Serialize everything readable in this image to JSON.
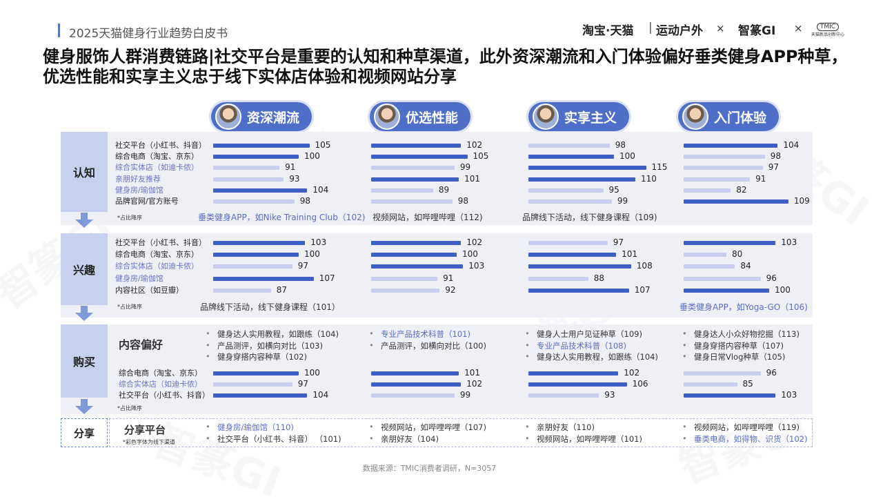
{
  "header": {
    "title": "2025天猫健身行业趋势白皮书",
    "brand_taobao": "淘宝·天猫",
    "brand_sep": "|",
    "brand_sport": "运动户外",
    "times": "×",
    "brand_gi": "智篆GI",
    "tmic_top": "TMIC",
    "tmic_bottom": "天猫新品创新中心"
  },
  "title": "健身服饰人群消费链路|社交平台是重要的认知和种草渠道，此外资深潮流和入门体验偏好垂类健身APP种草，优选性能和实享主义忠于线下实体店体验和视频网站分享",
  "watermark": "智篆GI",
  "segments": [
    "资深潮流",
    "优选性能",
    "实享主义",
    "入门体验"
  ],
  "stages": {
    "awareness": "认知",
    "interest": "兴趣",
    "purchase": "购买",
    "share": "分享"
  },
  "note_sort": "*占比降序",
  "note_color": "*彩色字体为线下渠道",
  "chart_data": [
    {
      "type": "bar",
      "stage": "认知",
      "categories": [
        "社交平台（小红书、抖音）",
        "综合电商（淘宝、京东）",
        "综合实体店（如迪卡侬）",
        "亲朋好友推荐",
        "健身房/瑜伽馆",
        "品牌官网/官方账号"
      ],
      "offline_categories": [
        2,
        3,
        4
      ],
      "series": [
        {
          "name": "资深潮流",
          "values": [
            105,
            100,
            91,
            93,
            104,
            98
          ],
          "extra": "垂类健身APP，如Nike Training Club（102)",
          "extra_offline": true
        },
        {
          "name": "优选性能",
          "values": [
            102,
            105,
            99,
            101,
            89,
            98
          ],
          "extra": "视频网站，如哔哩哔哩（112)",
          "extra_offline": false
        },
        {
          "name": "实享主义",
          "values": [
            98,
            100,
            115,
            110,
            95,
            99
          ],
          "extra": "品牌线下活动，线下健身课程（109)",
          "extra_offline": false
        },
        {
          "name": "入门体验",
          "values": [
            104,
            98,
            97,
            91,
            82,
            109
          ],
          "extra": "",
          "extra_offline": false
        }
      ]
    },
    {
      "type": "bar",
      "stage": "兴趣",
      "categories": [
        "社交平台（小红书、抖音）",
        "综合电商（淘宝、京东）",
        "综合实体店（如迪卡侬）",
        "健身房/瑜伽馆",
        "内容社区（如豆瓣）"
      ],
      "offline_categories": [
        2,
        3
      ],
      "series": [
        {
          "name": "资深潮流",
          "values": [
            103,
            100,
            97,
            107,
            87
          ],
          "extra": "品牌线下活动，线下健身课程（101）",
          "extra_offline": false
        },
        {
          "name": "优选性能",
          "values": [
            102,
            100,
            103,
            91,
            92
          ],
          "extra": "",
          "extra_offline": false
        },
        {
          "name": "实享主义",
          "values": [
            97,
            101,
            108,
            88,
            107
          ],
          "extra": "",
          "extra_offline": false
        },
        {
          "name": "入门体验",
          "values": [
            103,
            80,
            84,
            96,
            100
          ],
          "extra": "垂类健身APP，如Yoga-GO（106)",
          "extra_offline": true
        }
      ]
    },
    {
      "type": "bar",
      "stage": "购买",
      "categories": [
        "综合电商（淘宝、京东）",
        "综合实体店（如迪卡侬）",
        "社交平台（小红书、抖音）"
      ],
      "offline_categories": [
        1
      ],
      "series": [
        {
          "name": "资深潮流",
          "values": [
            100,
            97,
            104
          ]
        },
        {
          "name": "优选性能",
          "values": [
            101,
            102,
            99
          ]
        },
        {
          "name": "实享主义",
          "values": [
            102,
            106,
            93
          ]
        },
        {
          "name": "入门体验",
          "values": [
            96,
            85,
            103
          ]
        }
      ]
    }
  ],
  "content_pref": {
    "title": "内容偏好",
    "columns": [
      [
        {
          "text": "健身达人实用教程，如跟练（104)",
          "hl": false
        },
        {
          "text": "产品测评，如横向对比（103)",
          "hl": false
        },
        {
          "text": "健身穿搭内容种草（102)",
          "hl": false
        }
      ],
      [
        {
          "text": "专业产品技术科普（101)",
          "hl": true
        },
        {
          "text": "产品测评，如横向对比（100)",
          "hl": false
        }
      ],
      [
        {
          "text": "健身人士用户见证种草（109)",
          "hl": false
        },
        {
          "text": "专业产品技术科普（108)",
          "hl": true
        },
        {
          "text": "健身达人实用教程，如跟练（104)",
          "hl": false
        }
      ],
      [
        {
          "text": "健身达人小众好物挖掘（113)",
          "hl": false
        },
        {
          "text": "健身穿搭内容种草（107)",
          "hl": false
        },
        {
          "text": "健身日常Vlog种草（105)",
          "hl": false
        }
      ]
    ]
  },
  "share_platform": {
    "title": "分享平台",
    "columns": [
      [
        {
          "text": "健身房/瑜伽馆（110)",
          "hl": true
        },
        {
          "text": "社交平台（小红书、抖音） （101)",
          "hl": false
        }
      ],
      [
        {
          "text": "视频网站，如哔哩哔哩（107)",
          "hl": false
        },
        {
          "text": "亲朋好友（104)",
          "hl": false
        }
      ],
      [
        {
          "text": "亲朋好友（110)",
          "hl": false
        },
        {
          "text": "视频网站，如哔哩哔哩（101)",
          "hl": false
        }
      ],
      [
        {
          "text": "视频网站，如哔哩哔哩（119)",
          "hl": false
        },
        {
          "text": "垂类电商，如得物、识货（102)",
          "hl": true
        }
      ]
    ]
  },
  "source": "数据来源：TMIC消费者调研，N=3057"
}
